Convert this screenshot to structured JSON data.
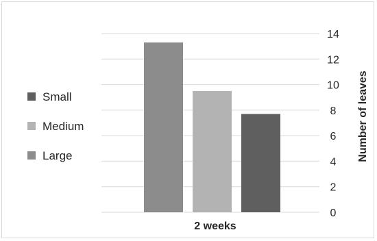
{
  "chart_data": {
    "type": "bar",
    "categories": [
      "2 weeks"
    ],
    "series": [
      {
        "name": "Large",
        "values": [
          13.3
        ],
        "color": "#8c8c8c"
      },
      {
        "name": "Medium",
        "values": [
          9.5
        ],
        "color": "#b3b3b3"
      },
      {
        "name": "Small",
        "values": [
          7.7
        ],
        "color": "#5f5f5f"
      }
    ],
    "legend_order": [
      "Small",
      "Medium",
      "Large"
    ],
    "title": "",
    "xlabel": "",
    "ylabel": "Number of leaves",
    "ylim": [
      0,
      14
    ],
    "yticks": [
      0,
      2,
      4,
      6,
      8,
      10,
      12,
      14
    ],
    "y_axis_side": "right",
    "legend_position": "left",
    "grid": true
  }
}
